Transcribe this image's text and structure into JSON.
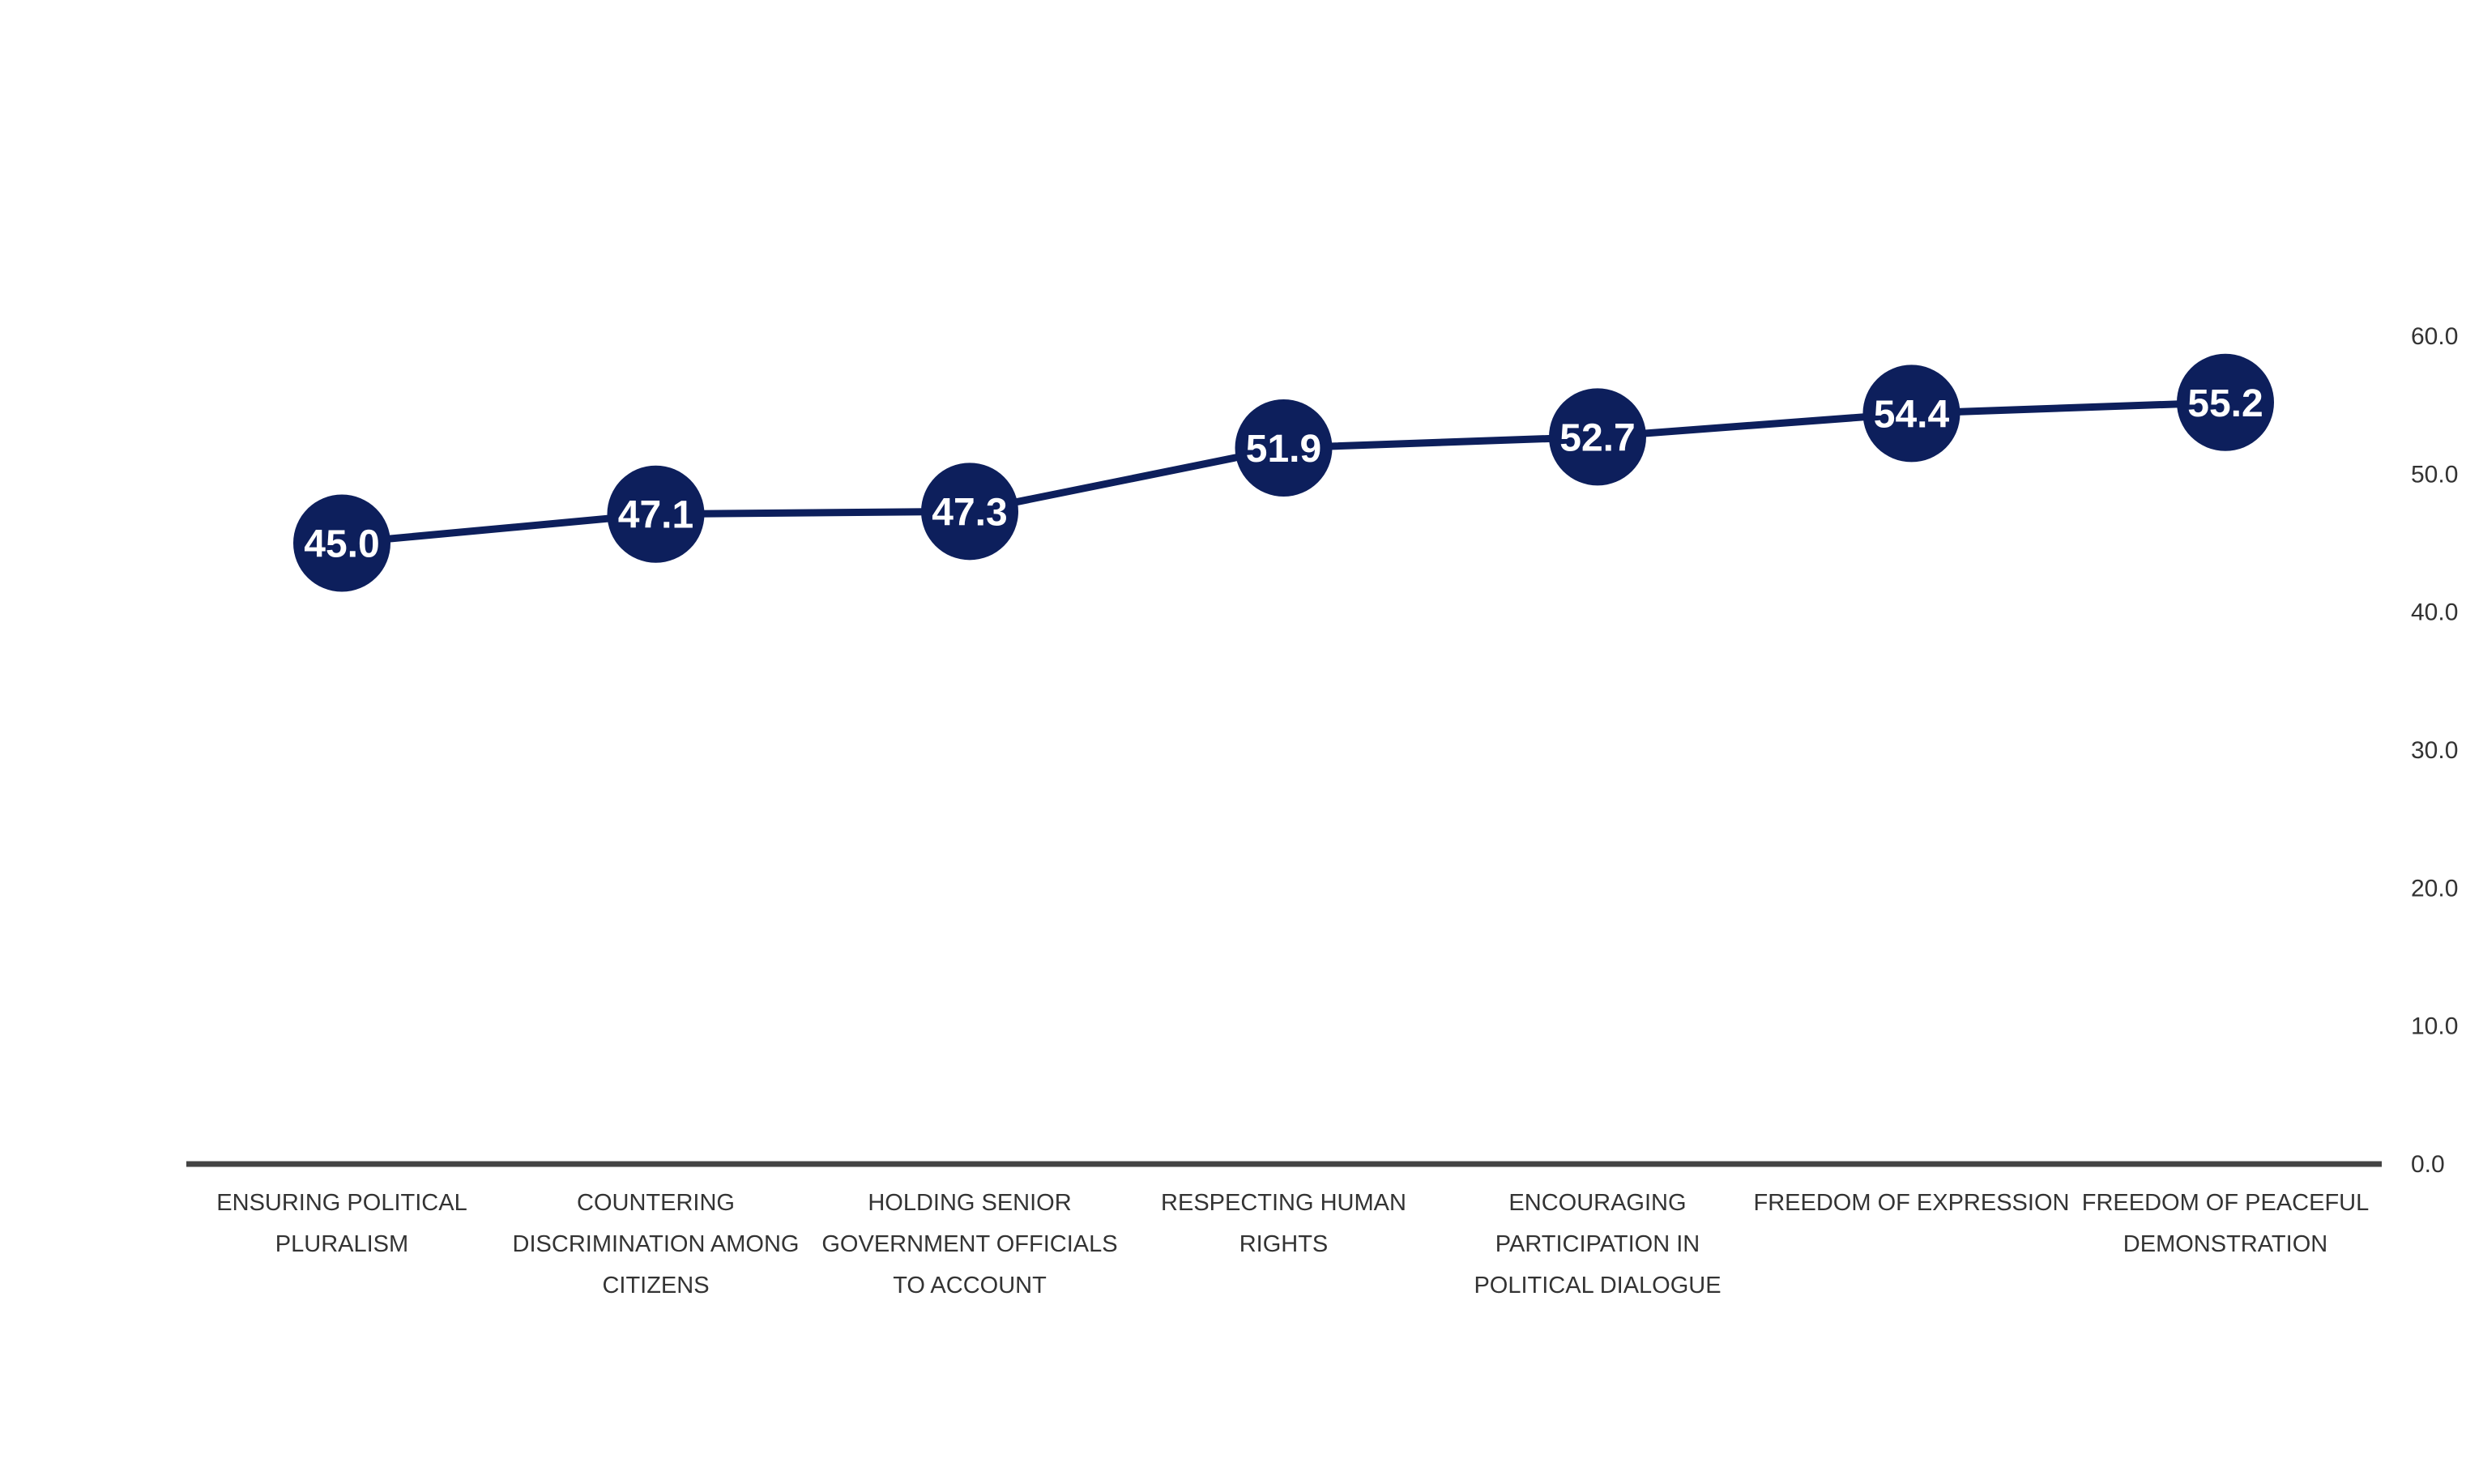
{
  "chart_data": {
    "type": "line",
    "categories": [
      [
        "ENSURING POLITICAL",
        "PLURALISM"
      ],
      [
        "COUNTERING",
        "DISCRIMINATION AMONG",
        "CITIZENS"
      ],
      [
        "HOLDING SENIOR",
        "GOVERNMENT OFFICIALS",
        "TO ACCOUNT"
      ],
      [
        "RESPECTING HUMAN",
        "RIGHTS"
      ],
      [
        "ENCOURAGING",
        "PARTICIPATION IN",
        "POLITICAL DIALOGUE"
      ],
      [
        "FREEDOM OF EXPRESSION"
      ],
      [
        "FREEDOM OF PEACEFUL",
        "DEMONSTRATION"
      ]
    ],
    "values": [
      45.0,
      47.1,
      47.3,
      51.9,
      52.7,
      54.4,
      55.2
    ],
    "data_labels": [
      "45.0",
      "47.1",
      "47.3",
      "51.9",
      "52.7",
      "54.4",
      "55.2"
    ],
    "ylim": [
      0,
      60
    ],
    "yticks": [
      "0.0",
      "10.0",
      "20.0",
      "30.0",
      "40.0",
      "50.0",
      "60.0"
    ],
    "y_axis_side": "right",
    "grid": false,
    "legend": "none",
    "colors": {
      "line": "#0d1f5c",
      "marker": "#0d1f5c",
      "label_text": "#ffffff",
      "axis": "#444444",
      "tick_text": "#333333"
    }
  }
}
